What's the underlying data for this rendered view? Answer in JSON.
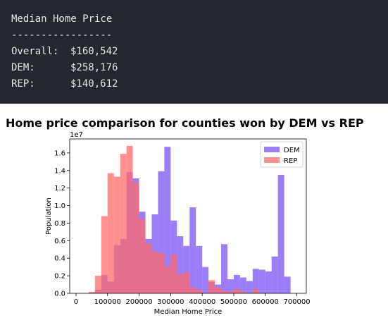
{
  "output": {
    "lines": [
      {
        "label": "Median Home Price",
        "value": ""
      },
      {
        "label": "-----------------",
        "value": ""
      },
      {
        "label": "Overall:",
        "value": "$160,542"
      },
      {
        "label": "DEM:",
        "value": "$258,176"
      },
      {
        "label": "REP:",
        "value": "$140,612"
      }
    ]
  },
  "chart_title": "Home price comparison for counties won by DEM vs REP",
  "chart_data": {
    "type": "bar",
    "title": "Home price comparison for counties won by DEM vs REP",
    "xlabel": "Median Home Price",
    "ylabel": "Population",
    "y_multiplier_label": "1e7",
    "xlim": [
      -20000,
      730000
    ],
    "ylim": [
      0,
      17600000
    ],
    "xticks": [
      0,
      100000,
      200000,
      300000,
      400000,
      500000,
      600000,
      700000
    ],
    "yticks": [
      0,
      2000000,
      4000000,
      6000000,
      8000000,
      10000000,
      12000000,
      14000000,
      16000000
    ],
    "ytick_labels": [
      "0.0",
      "0.2",
      "0.4",
      "0.6",
      "0.8",
      "1.0",
      "1.2",
      "1.4",
      "1.6"
    ],
    "legend_position": "top-right",
    "grid": false,
    "series": [
      {
        "name": "DEM",
        "color": "#7b53f8",
        "bins": [
          {
            "x0": 40000,
            "x1": 60000,
            "y": 100000
          },
          {
            "x0": 60000,
            "x1": 80000,
            "y": 400000
          },
          {
            "x0": 80000,
            "x1": 100000,
            "y": 2100000
          },
          {
            "x0": 100000,
            "x1": 120000,
            "y": 1350000
          },
          {
            "x0": 120000,
            "x1": 140000,
            "y": 5500000
          },
          {
            "x0": 140000,
            "x1": 160000,
            "y": 6200000
          },
          {
            "x0": 160000,
            "x1": 180000,
            "y": 13800000
          },
          {
            "x0": 180000,
            "x1": 200000,
            "y": 13100000
          },
          {
            "x0": 200000,
            "x1": 220000,
            "y": 9300000
          },
          {
            "x0": 220000,
            "x1": 240000,
            "y": 6200000
          },
          {
            "x0": 240000,
            "x1": 260000,
            "y": 9000000
          },
          {
            "x0": 260000,
            "x1": 280000,
            "y": 13900000
          },
          {
            "x0": 280000,
            "x1": 300000,
            "y": 16700000
          },
          {
            "x0": 300000,
            "x1": 320000,
            "y": 8300000
          },
          {
            "x0": 320000,
            "x1": 340000,
            "y": 6500000
          },
          {
            "x0": 340000,
            "x1": 360000,
            "y": 5400000
          },
          {
            "x0": 360000,
            "x1": 380000,
            "y": 9800000
          },
          {
            "x0": 380000,
            "x1": 400000,
            "y": 5400000
          },
          {
            "x0": 400000,
            "x1": 420000,
            "y": 3000000
          },
          {
            "x0": 420000,
            "x1": 440000,
            "y": 1300000
          },
          {
            "x0": 440000,
            "x1": 460000,
            "y": 1000000
          },
          {
            "x0": 460000,
            "x1": 480000,
            "y": 5600000
          },
          {
            "x0": 480000,
            "x1": 500000,
            "y": 1600000
          },
          {
            "x0": 500000,
            "x1": 520000,
            "y": 2100000
          },
          {
            "x0": 520000,
            "x1": 540000,
            "y": 1800000
          },
          {
            "x0": 540000,
            "x1": 560000,
            "y": 1400000
          },
          {
            "x0": 560000,
            "x1": 580000,
            "y": 2800000
          },
          {
            "x0": 580000,
            "x1": 600000,
            "y": 2700000
          },
          {
            "x0": 600000,
            "x1": 620000,
            "y": 2500000
          },
          {
            "x0": 620000,
            "x1": 640000,
            "y": 4200000
          },
          {
            "x0": 640000,
            "x1": 660000,
            "y": 13500000
          },
          {
            "x0": 660000,
            "x1": 680000,
            "y": 1900000
          }
        ]
      },
      {
        "name": "REP",
        "color": "#ff6b6b",
        "bins": [
          {
            "x0": 40000,
            "x1": 60000,
            "y": 150000
          },
          {
            "x0": 60000,
            "x1": 80000,
            "y": 2000000
          },
          {
            "x0": 80000,
            "x1": 100000,
            "y": 8800000
          },
          {
            "x0": 100000,
            "x1": 120000,
            "y": 13700000
          },
          {
            "x0": 120000,
            "x1": 140000,
            "y": 13300000
          },
          {
            "x0": 140000,
            "x1": 160000,
            "y": 15900000
          },
          {
            "x0": 160000,
            "x1": 180000,
            "y": 16800000
          },
          {
            "x0": 180000,
            "x1": 200000,
            "y": 12700000
          },
          {
            "x0": 200000,
            "x1": 220000,
            "y": 8500000
          },
          {
            "x0": 220000,
            "x1": 240000,
            "y": 5700000
          },
          {
            "x0": 240000,
            "x1": 260000,
            "y": 4800000
          },
          {
            "x0": 260000,
            "x1": 280000,
            "y": 4600000
          },
          {
            "x0": 280000,
            "x1": 300000,
            "y": 3100000
          },
          {
            "x0": 300000,
            "x1": 320000,
            "y": 4400000
          },
          {
            "x0": 320000,
            "x1": 340000,
            "y": 2200000
          },
          {
            "x0": 340000,
            "x1": 360000,
            "y": 2400000
          },
          {
            "x0": 360000,
            "x1": 380000,
            "y": 700000
          },
          {
            "x0": 380000,
            "x1": 400000,
            "y": 400000
          },
          {
            "x0": 400000,
            "x1": 420000,
            "y": 0
          },
          {
            "x0": 420000,
            "x1": 440000,
            "y": 1500000
          },
          {
            "x0": 440000,
            "x1": 460000,
            "y": 700000
          },
          {
            "x0": 460000,
            "x1": 480000,
            "y": 300000
          },
          {
            "x0": 480000,
            "x1": 500000,
            "y": 200000
          },
          {
            "x0": 500000,
            "x1": 520000,
            "y": 500000
          },
          {
            "x0": 520000,
            "x1": 540000,
            "y": 200000
          },
          {
            "x0": 540000,
            "x1": 560000,
            "y": 0
          },
          {
            "x0": 560000,
            "x1": 580000,
            "y": 500000
          }
        ]
      }
    ]
  }
}
